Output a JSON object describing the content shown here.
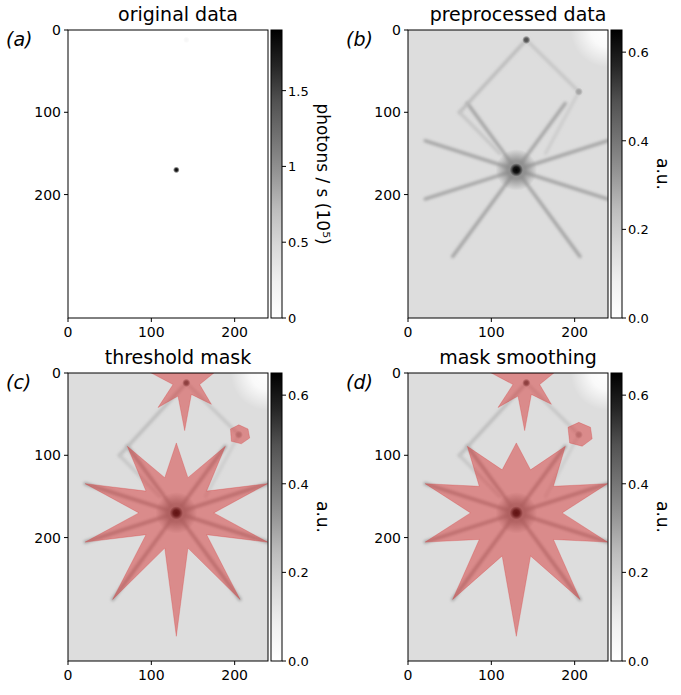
{
  "chart_data": [
    {
      "type": "heatmap",
      "panel": "(a)",
      "title": "original data",
      "xlim": [
        0,
        240
      ],
      "ylim": [
        350,
        0
      ],
      "xticks": [
        0,
        100,
        200
      ],
      "yticks": [
        0,
        100,
        200
      ],
      "colorbar": {
        "label": "photons / s  (10⁵)",
        "range": [
          0,
          1.9
        ],
        "ticks": [
          0,
          0.5,
          1,
          1.5
        ]
      },
      "spots": [
        {
          "x": 130,
          "y": 170,
          "value": 1.9,
          "size": 4
        },
        {
          "x": 142,
          "y": 12,
          "value": 0.15,
          "size": 4
        }
      ]
    },
    {
      "type": "heatmap",
      "panel": "(b)",
      "title": "preprocessed data",
      "xlim": [
        0,
        240
      ],
      "ylim": [
        350,
        0
      ],
      "xticks": [
        0,
        100,
        200
      ],
      "yticks": [
        0,
        100,
        200
      ],
      "colorbar": {
        "label": "a.u.",
        "range": [
          0,
          0.65
        ],
        "ticks": [
          {
            "value": 0,
            "label": "0.0"
          },
          0.2,
          0.4,
          0.6
        ]
      },
      "background": 0.15,
      "streaks": [
        {
          "x1": 130,
          "y1": 170,
          "x2": 130,
          "y2": 85,
          "value": 0.3
        },
        {
          "x1": 130,
          "y1": 170,
          "x2": 188.8,
          "y2": 89.1,
          "value": 0.3
        },
        {
          "x1": 130,
          "y1": 170,
          "x2": 239.4,
          "y2": 134.5,
          "value": 0.3
        },
        {
          "x1": 130,
          "y1": 170,
          "x2": 239.4,
          "y2": 205.5,
          "value": 0.3
        },
        {
          "x1": 130,
          "y1": 170,
          "x2": 206.4,
          "y2": 275.2,
          "value": 0.3
        },
        {
          "x1": 130,
          "y1": 170,
          "x2": 130,
          "y2": 320,
          "value": 0.3
        },
        {
          "x1": 130,
          "y1": 170,
          "x2": 53.6,
          "y2": 275.2,
          "value": 0.3
        },
        {
          "x1": 130,
          "y1": 170,
          "x2": 20.6,
          "y2": 205.5,
          "value": 0.3
        },
        {
          "x1": 130,
          "y1": 170,
          "x2": 20.6,
          "y2": 134.5,
          "value": 0.3
        },
        {
          "x1": 130,
          "y1": 170,
          "x2": 71.2,
          "y2": 89.1,
          "value": 0.3
        },
        {
          "x1": 142,
          "y1": 12,
          "x2": 62,
          "y2": 100,
          "value": 0.25
        },
        {
          "x1": 62,
          "y1": 100,
          "x2": 110,
          "y2": 150,
          "value": 0.22
        },
        {
          "x1": 142,
          "y1": 12,
          "x2": 205,
          "y2": 75,
          "value": 0.22
        },
        {
          "x1": 205,
          "y1": 75,
          "x2": 165,
          "y2": 150,
          "value": 0.2
        }
      ],
      "spots": [
        {
          "x": 240,
          "y": 0,
          "value": 0,
          "size": 45
        },
        {
          "x": 130,
          "y": 170,
          "value": 0.35,
          "size": 25
        },
        {
          "x": 130,
          "y": 170,
          "value": 0.65,
          "size": 8
        },
        {
          "x": 142,
          "y": 12,
          "value": 0.5,
          "size": 5
        },
        {
          "x": 205,
          "y": 75,
          "value": 0.3,
          "size": 5
        }
      ]
    },
    {
      "type": "heatmap",
      "panel": "(c)",
      "title": "threshold mask",
      "xlim": [
        0,
        240
      ],
      "ylim": [
        350,
        0
      ],
      "xticks": [
        0,
        100,
        200
      ],
      "yticks": [
        0,
        100,
        200
      ],
      "colorbar": {
        "label": "a.u.",
        "range": [
          0,
          0.65
        ],
        "ticks": [
          {
            "value": 0,
            "label": "0.0"
          },
          0.2,
          0.4,
          0.6
        ]
      },
      "background": 0.15,
      "streaks": [
        {
          "x1": 130,
          "y1": 170,
          "x2": 130,
          "y2": 85,
          "value": 0.3
        },
        {
          "x1": 130,
          "y1": 170,
          "x2": 188.8,
          "y2": 89.1,
          "value": 0.3
        },
        {
          "x1": 130,
          "y1": 170,
          "x2": 239.4,
          "y2": 134.5,
          "value": 0.3
        },
        {
          "x1": 130,
          "y1": 170,
          "x2": 239.4,
          "y2": 205.5,
          "value": 0.3
        },
        {
          "x1": 130,
          "y1": 170,
          "x2": 206.4,
          "y2": 275.2,
          "value": 0.3
        },
        {
          "x1": 130,
          "y1": 170,
          "x2": 130,
          "y2": 320,
          "value": 0.3
        },
        {
          "x1": 130,
          "y1": 170,
          "x2": 53.6,
          "y2": 275.2,
          "value": 0.3
        },
        {
          "x1": 130,
          "y1": 170,
          "x2": 20.6,
          "y2": 205.5,
          "value": 0.3
        },
        {
          "x1": 130,
          "y1": 170,
          "x2": 20.6,
          "y2": 134.5,
          "value": 0.3
        },
        {
          "x1": 130,
          "y1": 170,
          "x2": 71.2,
          "y2": 89.1,
          "value": 0.3
        },
        {
          "x1": 142,
          "y1": 12,
          "x2": 62,
          "y2": 100,
          "value": 0.25
        },
        {
          "x1": 62,
          "y1": 100,
          "x2": 110,
          "y2": 150,
          "value": 0.22
        },
        {
          "x1": 142,
          "y1": 12,
          "x2": 205,
          "y2": 75,
          "value": 0.22
        },
        {
          "x1": 205,
          "y1": 75,
          "x2": 165,
          "y2": 150,
          "value": 0.2
        }
      ],
      "spots": [
        {
          "x": 240,
          "y": 0,
          "value": 0,
          "size": 45
        },
        {
          "x": 130,
          "y": 170,
          "value": 0.35,
          "size": 25
        },
        {
          "x": 130,
          "y": 170,
          "value": 0.65,
          "size": 8
        },
        {
          "x": 142,
          "y": 12,
          "value": 0.5,
          "size": 5
        },
        {
          "x": 205,
          "y": 75,
          "value": 0.3,
          "size": 5
        }
      ],
      "mask": {
        "color": "#d62728",
        "polygons": [
          [
            [
              130,
              85
            ],
            [
              143.9,
              127.2
            ],
            [
              188.8,
              89.1
            ],
            [
              166.4,
              143.5
            ],
            [
              239.4,
              134.5
            ],
            [
              175,
              170
            ],
            [
              239.4,
              205.5
            ],
            [
              166.4,
              196.5
            ],
            [
              206.4,
              275.2
            ],
            [
              143.9,
              212.8
            ],
            [
              130,
              320
            ],
            [
              116.1,
              212.8
            ],
            [
              53.6,
              275.2
            ],
            [
              93.6,
              196.5
            ],
            [
              20.6,
              205.5
            ],
            [
              85,
              170
            ],
            [
              20.6,
              134.5
            ],
            [
              93.6,
              143.5
            ],
            [
              71.2,
              89.1
            ],
            [
              116.1,
              127.2
            ]
          ],
          [
            [
              100,
              0
            ],
            [
              175,
              0
            ],
            [
              158,
              14
            ],
            [
              172,
              38
            ],
            [
              148,
              26
            ],
            [
              140,
              70
            ],
            [
              132,
              28
            ],
            [
              108,
              42
            ],
            [
              126,
              14
            ]
          ],
          [
            [
              195,
              68
            ],
            [
              205,
              63
            ],
            [
              216,
              68
            ],
            [
              218,
              79
            ],
            [
              208,
              86
            ],
            [
              196,
              83
            ]
          ]
        ]
      }
    },
    {
      "type": "heatmap",
      "panel": "(d)",
      "title": "mask smoothing",
      "xlim": [
        0,
        240
      ],
      "ylim": [
        350,
        0
      ],
      "xticks": [
        0,
        100,
        200
      ],
      "yticks": [
        0,
        100,
        200
      ],
      "colorbar": {
        "label": "a.u.",
        "range": [
          0,
          0.65
        ],
        "ticks": [
          {
            "value": 0,
            "label": "0.0"
          },
          0.2,
          0.4,
          0.6
        ]
      },
      "background": 0.15,
      "streaks": [
        {
          "x1": 130,
          "y1": 170,
          "x2": 130,
          "y2": 85,
          "value": 0.3
        },
        {
          "x1": 130,
          "y1": 170,
          "x2": 188.8,
          "y2": 89.1,
          "value": 0.3
        },
        {
          "x1": 130,
          "y1": 170,
          "x2": 239.4,
          "y2": 134.5,
          "value": 0.3
        },
        {
          "x1": 130,
          "y1": 170,
          "x2": 239.4,
          "y2": 205.5,
          "value": 0.3
        },
        {
          "x1": 130,
          "y1": 170,
          "x2": 206.4,
          "y2": 275.2,
          "value": 0.3
        },
        {
          "x1": 130,
          "y1": 170,
          "x2": 130,
          "y2": 320,
          "value": 0.3
        },
        {
          "x1": 130,
          "y1": 170,
          "x2": 53.6,
          "y2": 275.2,
          "value": 0.3
        },
        {
          "x1": 130,
          "y1": 170,
          "x2": 20.6,
          "y2": 205.5,
          "value": 0.3
        },
        {
          "x1": 130,
          "y1": 170,
          "x2": 20.6,
          "y2": 134.5,
          "value": 0.3
        },
        {
          "x1": 130,
          "y1": 170,
          "x2": 71.2,
          "y2": 89.1,
          "value": 0.3
        },
        {
          "x1": 142,
          "y1": 12,
          "x2": 62,
          "y2": 100,
          "value": 0.25
        },
        {
          "x1": 62,
          "y1": 100,
          "x2": 110,
          "y2": 150,
          "value": 0.22
        },
        {
          "x1": 142,
          "y1": 12,
          "x2": 205,
          "y2": 75,
          "value": 0.22
        },
        {
          "x1": 205,
          "y1": 75,
          "x2": 165,
          "y2": 150,
          "value": 0.2
        }
      ],
      "spots": [
        {
          "x": 240,
          "y": 0,
          "value": 0,
          "size": 45
        },
        {
          "x": 130,
          "y": 170,
          "value": 0.35,
          "size": 25
        },
        {
          "x": 130,
          "y": 170,
          "value": 0.65,
          "size": 8
        },
        {
          "x": 142,
          "y": 12,
          "value": 0.5,
          "size": 5
        },
        {
          "x": 205,
          "y": 75,
          "value": 0.3,
          "size": 5
        }
      ],
      "mask": {
        "color": "#d62728",
        "polygons": [
          [
            [
              130,
              85
            ],
            [
              147.0,
              117.7
            ],
            [
              188.8,
              89.1
            ],
            [
              174.5,
              137.7
            ],
            [
              239.4,
              134.5
            ],
            [
              185,
              170
            ],
            [
              239.4,
              205.5
            ],
            [
              174.5,
              202.3
            ],
            [
              206.4,
              275.2
            ],
            [
              147.0,
              222.3
            ],
            [
              130,
              320
            ],
            [
              113.0,
              222.3
            ],
            [
              53.6,
              275.2
            ],
            [
              85.5,
              202.3
            ],
            [
              20.6,
              205.5
            ],
            [
              75,
              170
            ],
            [
              20.6,
              134.5
            ],
            [
              85.5,
              137.7
            ],
            [
              71.2,
              89.1
            ],
            [
              113.0,
              117.7
            ]
          ],
          [
            [
              100,
              0
            ],
            [
              175,
              0
            ],
            [
              158,
              14
            ],
            [
              172,
              38
            ],
            [
              148,
              26
            ],
            [
              140,
              70
            ],
            [
              132,
              28
            ],
            [
              108,
              42
            ],
            [
              126,
              14
            ]
          ],
          [
            [
              192,
              66
            ],
            [
              205,
              60
            ],
            [
              219,
              66
            ],
            [
              221,
              80
            ],
            [
              209,
              89
            ],
            [
              194,
              85
            ]
          ]
        ]
      }
    }
  ]
}
